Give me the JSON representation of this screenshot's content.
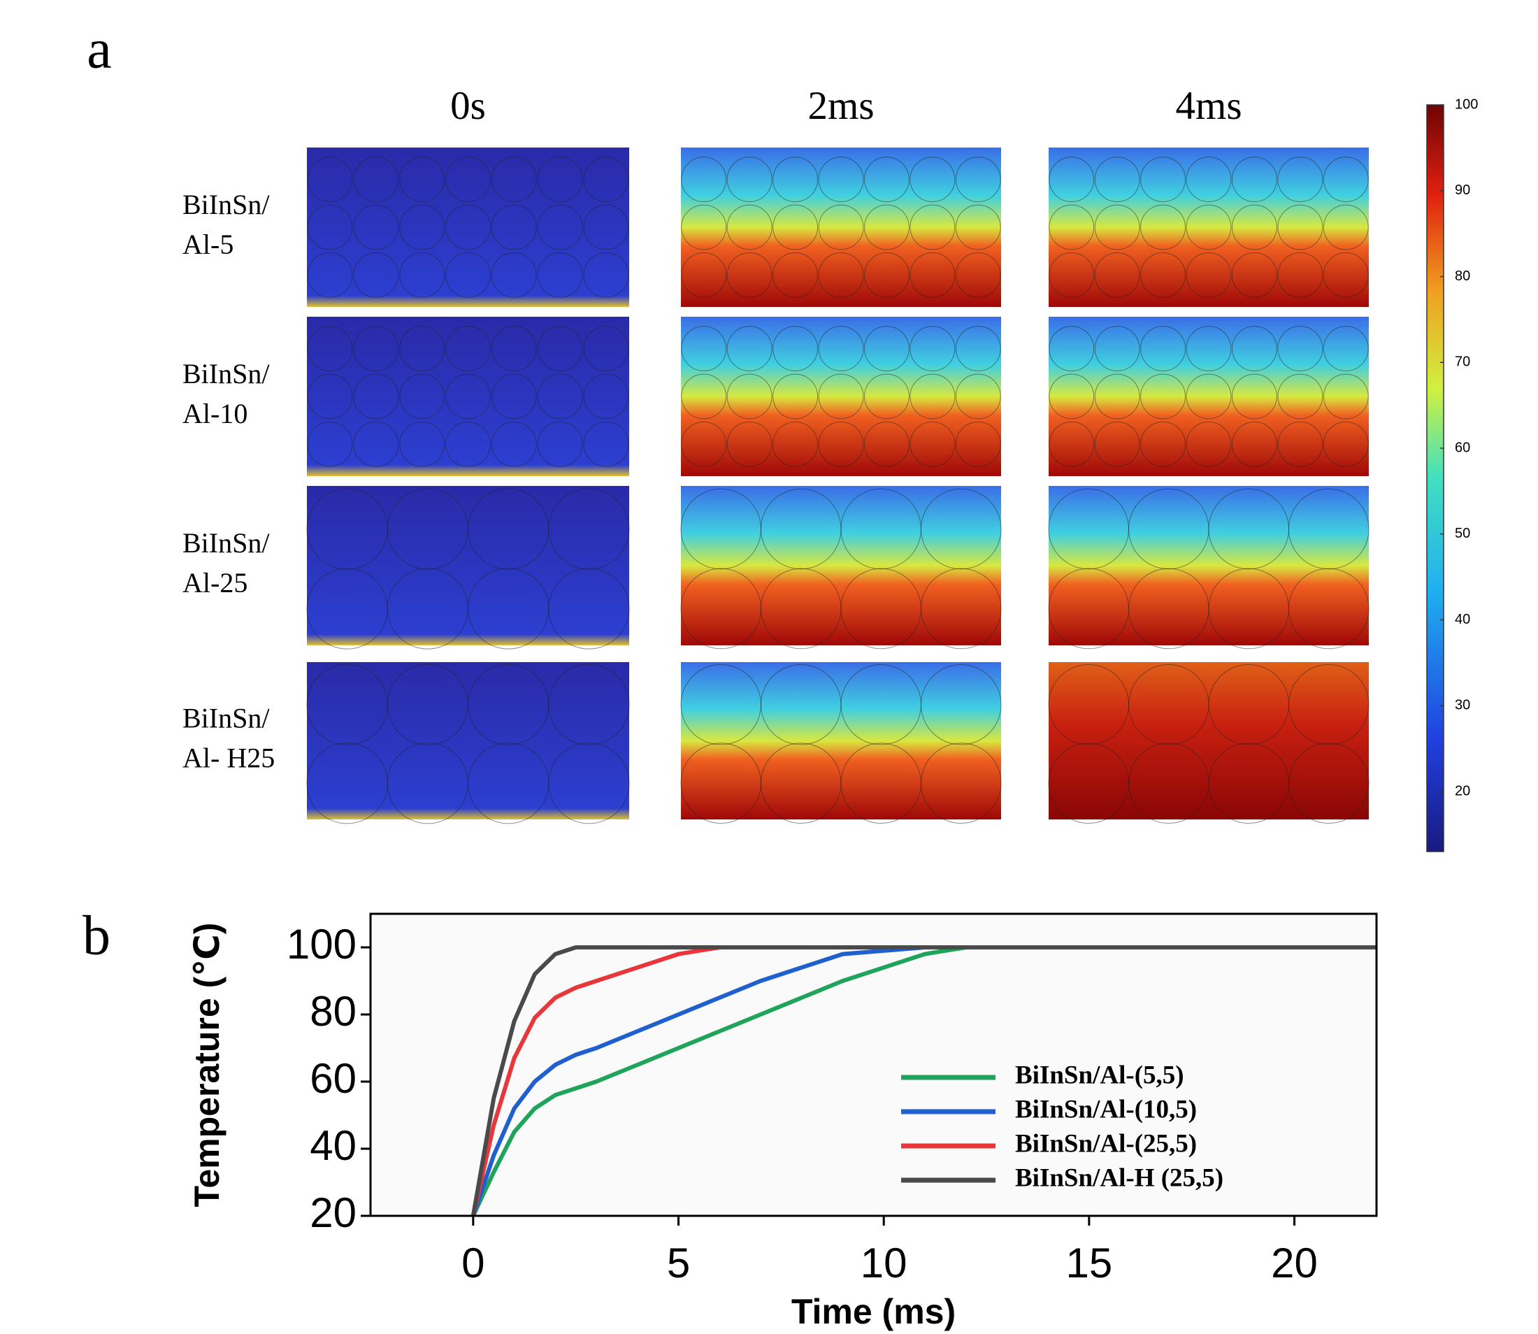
{
  "panel_a": {
    "label": "a",
    "columns": [
      "0s",
      "2ms",
      "4ms"
    ],
    "rows": [
      [
        "BiInSn/",
        "Al-5"
      ],
      [
        "BiInSn/",
        "Al-10"
      ],
      [
        "BiInSn/",
        "Al-25"
      ],
      [
        "BiInSn/",
        "Al- H25"
      ]
    ],
    "colorbar": {
      "lim": [
        13,
        100
      ],
      "ticks": [
        20,
        30,
        40,
        50,
        60,
        70,
        80,
        90,
        100
      ]
    }
  },
  "chart_data": {
    "type": "line",
    "panel_label": "b",
    "x_label": "Time (ms)",
    "y_label": "Temperature (℃)",
    "x": [
      0,
      0.5,
      1,
      1.5,
      2,
      2.5,
      3,
      4,
      5,
      6,
      7,
      8,
      9,
      10,
      11,
      12,
      15,
      20,
      22
    ],
    "series": [
      {
        "name": "BiInSn/Al-(5,5)",
        "color": "#20a35a",
        "values": [
          20,
          33,
          45,
          52,
          56,
          58,
          60,
          65,
          70,
          75,
          80,
          85,
          90,
          94,
          98,
          100,
          100,
          100,
          100
        ]
      },
      {
        "name": "BiInSn/Al-(10,5)",
        "color": "#1f5fce",
        "values": [
          20,
          38,
          52,
          60,
          65,
          68,
          70,
          75,
          80,
          85,
          90,
          94,
          98,
          99,
          100,
          100,
          100,
          100,
          100
        ]
      },
      {
        "name": "BiInSn/Al-(25,5)",
        "color": "#e8363b",
        "values": [
          20,
          47,
          67,
          79,
          85,
          88,
          90,
          94,
          98,
          100,
          100,
          100,
          100,
          100,
          100,
          100,
          100,
          100,
          100
        ]
      },
      {
        "name": "BiInSn/Al-H (25,5)",
        "color": "#4a4a4a",
        "values": [
          20,
          55,
          78,
          92,
          98,
          100,
          100,
          100,
          100,
          100,
          100,
          100,
          100,
          100,
          100,
          100,
          100,
          100,
          100
        ]
      }
    ],
    "xlim": [
      -2.5,
      22
    ],
    "ylim": [
      20,
      110
    ],
    "xticks": [
      0,
      5,
      10,
      15,
      20
    ],
    "yticks": [
      20,
      40,
      60,
      80,
      100
    ]
  }
}
